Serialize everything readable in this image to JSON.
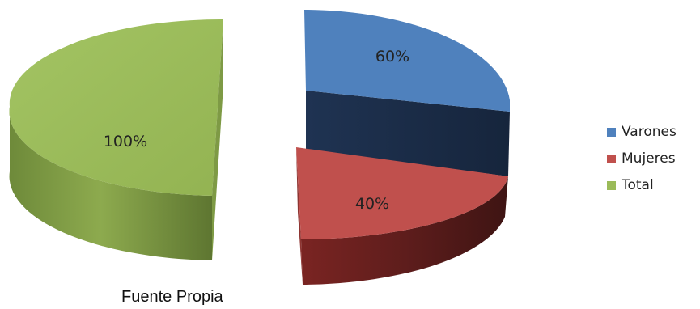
{
  "chart_data": {
    "type": "pie",
    "style": "exploded 3D pie",
    "slices": [
      {
        "name": "Varones",
        "label": "60%",
        "value": 60,
        "color": "#4F81BD"
      },
      {
        "name": "Mujeres",
        "label": "40%",
        "value": 40,
        "color": "#C0504D"
      },
      {
        "name": "Total",
        "label": "100%",
        "value": 100,
        "color": "#9BBB59"
      }
    ],
    "legend_position": "right"
  },
  "caption": "Fuente Propia"
}
